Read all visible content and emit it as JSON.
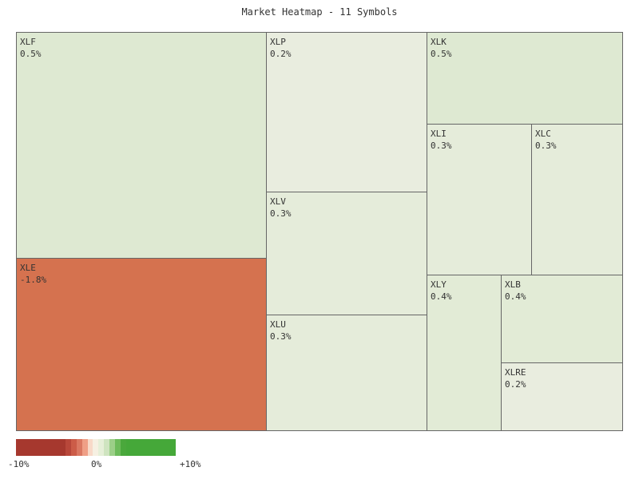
{
  "title": "Market Heatmap - 11 Symbols",
  "legend": {
    "min_label": "-10%",
    "mid_label": "0%",
    "max_label": "+10%",
    "colors": [
      "#a6382e",
      "#a6382e",
      "#a6382e",
      "#a6382e",
      "#a6382e",
      "#a6382e",
      "#a6382e",
      "#a6382e",
      "#a6382e",
      "#b8473a",
      "#cc5c48",
      "#da7862",
      "#ef9f86",
      "#f8d9c8",
      "#f6f0e2",
      "#e6efd8",
      "#cfe4c0",
      "#9ccf88",
      "#6dbb5a",
      "#4aa83c",
      "#45a839",
      "#45a839",
      "#45a839",
      "#45a839",
      "#45a839",
      "#45a839",
      "#45a839",
      "#45a839",
      "#45a839"
    ]
  },
  "chart_data": {
    "type": "heatmap",
    "subtype": "treemap",
    "title": "Market Heatmap - 11 Symbols",
    "color_scale": {
      "min": -10,
      "max": 10,
      "unit": "%"
    },
    "items": [
      {
        "symbol": "XLF",
        "change": "0.5%",
        "value": 0.5,
        "color": "#dee9d2"
      },
      {
        "symbol": "XLE",
        "change": "-1.8%",
        "value": -1.8,
        "color": "#d5724f"
      },
      {
        "symbol": "XLP",
        "change": "0.2%",
        "value": 0.2,
        "color": "#e9eddf"
      },
      {
        "symbol": "XLV",
        "change": "0.3%",
        "value": 0.3,
        "color": "#e5ecda"
      },
      {
        "symbol": "XLU",
        "change": "0.3%",
        "value": 0.3,
        "color": "#e5ecda"
      },
      {
        "symbol": "XLK",
        "change": "0.5%",
        "value": 0.5,
        "color": "#dee9d2"
      },
      {
        "symbol": "XLI",
        "change": "0.3%",
        "value": 0.3,
        "color": "#e5ecda"
      },
      {
        "symbol": "XLC",
        "change": "0.3%",
        "value": 0.3,
        "color": "#e5ecda"
      },
      {
        "symbol": "XLY",
        "change": "0.4%",
        "value": 0.4,
        "color": "#e2ebd6"
      },
      {
        "symbol": "XLB",
        "change": "0.4%",
        "value": 0.4,
        "color": "#e2ebd6"
      },
      {
        "symbol": "XLRE",
        "change": "0.2%",
        "value": 0.2,
        "color": "#e9eddf"
      }
    ]
  }
}
